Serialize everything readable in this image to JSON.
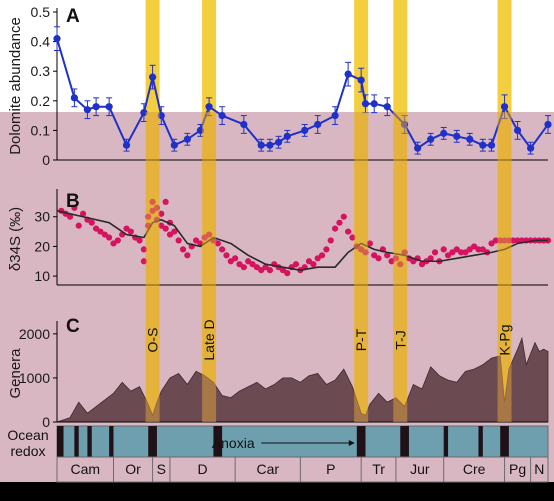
{
  "palette": {
    "background_upper": "#ffffff",
    "background_lower": "#d9b7c2",
    "event_band": "#f3cf3f",
    "event_band_overlay": "#d99d3a",
    "dolomite_line": "#1f31c9",
    "sulfur_point": "#d5135f",
    "sulfur_curve": "#2a2a2a",
    "genera_fill": "#6b4a52",
    "redox_oxic": "#6e9fae",
    "redox_anoxic": "#1f1117",
    "redox_border": "#6b6b6b"
  },
  "chart_data": [
    {
      "panel": "A",
      "type": "line",
      "title": "",
      "ylabel": "Dolomite abundance",
      "ylim": [
        0,
        0.5
      ],
      "yticks": [
        "0",
        "0.1",
        "0.2",
        "0.3",
        "0.4",
        "0.5"
      ],
      "grid": false,
      "series": [
        {
          "x": [
            0,
            4,
            7,
            9,
            12,
            16,
            20,
            22,
            24,
            27,
            30,
            33,
            35,
            38,
            43,
            47,
            49,
            51,
            53,
            57,
            60,
            64,
            67,
            70,
            71,
            73,
            76,
            80,
            83,
            86,
            89,
            92,
            95,
            98,
            100,
            103,
            106,
            109,
            113
          ],
          "values": [
            0.41,
            0.21,
            0.17,
            0.18,
            0.18,
            0.05,
            0.16,
            0.28,
            0.15,
            0.05,
            0.07,
            0.1,
            0.18,
            0.15,
            0.12,
            0.05,
            0.05,
            0.06,
            0.08,
            0.1,
            0.12,
            0.15,
            0.29,
            0.27,
            0.19,
            0.19,
            0.18,
            0.12,
            0.04,
            0.07,
            0.09,
            0.08,
            0.07,
            0.05,
            0.05,
            0.18,
            0.1,
            0.04,
            0.12
          ],
          "errors": [
            0.04,
            0.03,
            0.03,
            0.03,
            0.03,
            0.02,
            0.03,
            0.04,
            0.03,
            0.02,
            0.02,
            0.02,
            0.03,
            0.03,
            0.03,
            0.02,
            0.02,
            0.02,
            0.02,
            0.02,
            0.03,
            0.03,
            0.04,
            0.04,
            0.03,
            0.03,
            0.03,
            0.03,
            0.02,
            0.02,
            0.02,
            0.02,
            0.02,
            0.02,
            0.02,
            0.04,
            0.03,
            0.02,
            0.03
          ]
        }
      ]
    },
    {
      "panel": "B",
      "type": "scatter",
      "title": "",
      "ylabel": "δ34S (‰)",
      "ylim": [
        7,
        38
      ],
      "yticks": [
        "10",
        "20",
        "30"
      ],
      "grid": false,
      "points": {
        "x": [
          1,
          2,
          3,
          4,
          5,
          6,
          7,
          8,
          9,
          10,
          11,
          12,
          13,
          14,
          15,
          16,
          17,
          18,
          19,
          20,
          20,
          21,
          21,
          22,
          22,
          23,
          23,
          24,
          24,
          25,
          25,
          26,
          26,
          27,
          28,
          29,
          30,
          31,
          32,
          33,
          34,
          35,
          36,
          37,
          38,
          39,
          40,
          41,
          42,
          43,
          44,
          45,
          46,
          47,
          48,
          49,
          50,
          51,
          52,
          53,
          54,
          55,
          56,
          57,
          58,
          59,
          60,
          61,
          62,
          63,
          64,
          65,
          66,
          67,
          68,
          69,
          70,
          71,
          72,
          73,
          74,
          75,
          76,
          77,
          78,
          79,
          80,
          81,
          82,
          83,
          84,
          85,
          86,
          87,
          88,
          89,
          90,
          91,
          92,
          93,
          94,
          95,
          96,
          97,
          98,
          99,
          100,
          101,
          102,
          103,
          104,
          105,
          106,
          107,
          108,
          109,
          110,
          111,
          112,
          113
        ],
        "values": [
          32,
          31,
          30,
          33,
          27,
          31,
          29,
          28,
          26,
          25,
          24,
          23,
          21,
          22,
          24,
          26,
          25,
          23,
          22,
          19,
          15,
          27,
          30,
          32,
          35,
          29,
          33,
          27,
          31,
          26,
          35,
          28,
          24,
          25,
          22,
          19,
          17,
          20,
          22,
          21,
          23,
          24,
          22,
          21,
          19,
          17,
          15,
          16,
          14,
          13,
          15,
          14,
          13,
          12,
          13,
          12,
          14,
          13,
          12,
          11,
          13,
          14,
          12,
          13,
          15,
          14,
          16,
          17,
          19,
          22,
          26,
          28,
          30,
          25,
          23,
          20,
          19,
          18,
          21,
          17,
          16,
          19,
          17,
          15,
          16,
          14,
          18,
          16,
          15,
          16,
          14,
          15,
          16,
          18,
          15,
          19,
          17,
          18,
          19,
          18,
          18,
          19,
          20,
          19,
          19,
          18,
          21,
          22,
          22,
          22,
          22,
          22,
          22,
          22,
          22,
          22,
          22,
          22,
          22,
          22
        ]
      },
      "trend": {
        "x": [
          0,
          6,
          12,
          16,
          20,
          22,
          24,
          27,
          30,
          33,
          36,
          40,
          44,
          48,
          52,
          56,
          60,
          64,
          67,
          70,
          73,
          76,
          80,
          84,
          88,
          92,
          96,
          100,
          103,
          106,
          110,
          113
        ],
        "values": [
          32,
          30,
          28,
          24,
          23,
          28,
          29,
          27,
          21,
          20,
          23,
          21,
          17,
          14,
          13,
          12,
          13,
          13,
          18,
          21,
          19,
          18,
          17,
          15,
          15,
          16,
          17,
          18,
          19,
          21,
          22,
          22
        ]
      }
    },
    {
      "panel": "C",
      "type": "area",
      "title": "",
      "ylabel": "Genera",
      "ylim": [
        0,
        2200
      ],
      "yticks": [
        "0",
        "1000",
        "2000"
      ],
      "grid": false,
      "x": [
        0,
        3,
        5,
        7,
        9,
        11,
        13,
        15,
        17,
        19,
        21,
        22,
        23,
        24,
        26,
        28,
        30,
        32,
        34,
        36,
        38,
        40,
        42,
        44,
        46,
        48,
        50,
        52,
        54,
        56,
        58,
        60,
        62,
        64,
        66,
        68,
        70,
        71,
        72,
        74,
        76,
        78,
        80,
        82,
        84,
        86,
        88,
        90,
        92,
        94,
        96,
        98,
        100,
        102,
        103,
        104,
        106,
        107,
        108,
        110,
        111,
        112,
        113
      ],
      "values": [
        0,
        100,
        450,
        200,
        350,
        500,
        650,
        900,
        700,
        800,
        400,
        150,
        450,
        700,
        1000,
        1100,
        850,
        1150,
        1050,
        900,
        600,
        550,
        700,
        800,
        900,
        750,
        850,
        1000,
        1000,
        900,
        1050,
        1100,
        850,
        950,
        1200,
        800,
        200,
        150,
        400,
        650,
        450,
        550,
        350,
        850,
        750,
        1250,
        1050,
        950,
        900,
        1150,
        1200,
        1300,
        1450,
        1500,
        450,
        1200,
        1650,
        1900,
        1300,
        1800,
        1600,
        1650,
        1600
      ]
    }
  ],
  "panel_labels": [
    "A",
    "B",
    "C"
  ],
  "events": [
    {
      "label": "O-S",
      "x": 22
    },
    {
      "label": "Late D",
      "x": 35
    },
    {
      "label": "P-T",
      "x": 70
    },
    {
      "label": "T-J",
      "x": 79
    },
    {
      "label": "K-Pg",
      "x": 103
    }
  ],
  "redox": {
    "label_lines": [
      "Ocean",
      "redox"
    ],
    "annotation": "Anoxia",
    "anoxic_spans": [
      [
        0,
        1.5
      ],
      [
        4,
        5
      ],
      [
        7,
        8
      ],
      [
        12,
        13
      ],
      [
        21,
        23
      ],
      [
        36,
        38
      ],
      [
        69,
        71
      ],
      [
        79,
        81
      ],
      [
        89,
        90
      ],
      [
        97,
        98
      ],
      [
        102,
        104
      ]
    ]
  },
  "periods": [
    {
      "label": "Cam",
      "start": 0,
      "end": 13
    },
    {
      "label": "Or",
      "start": 13,
      "end": 22
    },
    {
      "label": "S",
      "start": 22,
      "end": 26
    },
    {
      "label": "D",
      "start": 26,
      "end": 41
    },
    {
      "label": "Car",
      "start": 41,
      "end": 56
    },
    {
      "label": "P",
      "start": 56,
      "end": 70
    },
    {
      "label": "Tr",
      "start": 70,
      "end": 78
    },
    {
      "label": "Jur",
      "start": 78,
      "end": 89
    },
    {
      "label": "Cre",
      "start": 89,
      "end": 103
    },
    {
      "label": "Pg",
      "start": 103,
      "end": 109
    },
    {
      "label": "N",
      "start": 109,
      "end": 113
    }
  ]
}
